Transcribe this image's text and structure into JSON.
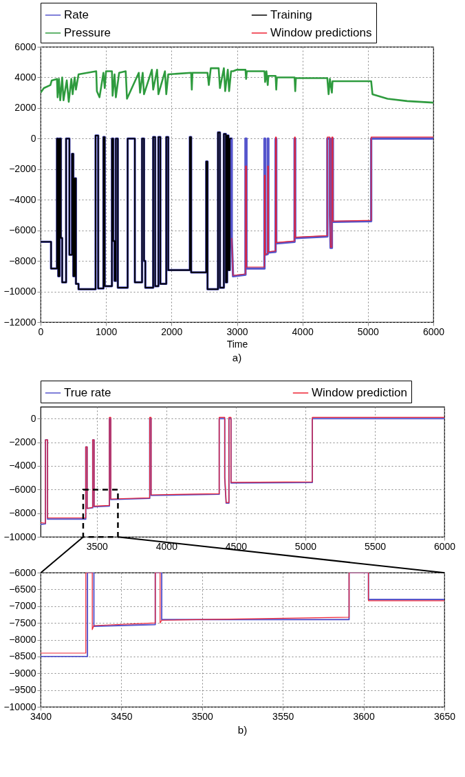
{
  "chart_data": [
    {
      "type": "line",
      "xlabel": "Time",
      "annotations": [
        "a)"
      ],
      "legend": "top",
      "grid": true,
      "xlim": [
        0,
        6000
      ],
      "ylim": [
        -12000,
        6000
      ],
      "xticks": [
        0,
        1000,
        2000,
        3000,
        4000,
        5000,
        6000
      ],
      "yticks": [
        -12000,
        -10000,
        -8000,
        -6000,
        -4000,
        -2000,
        0,
        2000,
        4000,
        6000
      ],
      "series": [
        {
          "name": "Rate",
          "color": "#5555cc",
          "x": [
            0,
            160,
            160,
            250,
            250,
            270,
            270,
            290,
            290,
            310,
            310,
            330,
            330,
            390,
            390,
            440,
            440,
            480,
            480,
            500,
            500,
            520,
            520,
            540,
            540,
            580,
            580,
            840,
            840,
            880,
            880,
            960,
            960,
            980,
            980,
            1090,
            1090,
            1110,
            1110,
            1130,
            1130,
            1150,
            1150,
            1180,
            1180,
            1330,
            1330,
            1440,
            1440,
            1550,
            1550,
            1580,
            1580,
            1600,
            1600,
            1720,
            1720,
            1750,
            1750,
            1800,
            1800,
            1830,
            1830,
            1920,
            1920,
            1950,
            1950,
            2280,
            2280,
            2300,
            2300,
            2530,
            2530,
            2550,
            2550,
            2710,
            2710,
            2740,
            2740,
            2800,
            2800,
            2830,
            2830,
            2850,
            2850,
            2870,
            2870,
            2890,
            2890,
            2920,
            2920,
            2940,
            3130,
            3130,
            3145,
            3145,
            3420,
            3420,
            3430,
            3430,
            3470,
            3470,
            3480,
            3480,
            3590,
            3590,
            3600,
            3600,
            3880,
            3880,
            3890,
            3890,
            4380,
            4380,
            4420,
            4420,
            4430,
            4450,
            4450,
            4465,
            4465,
            5050,
            5050,
            6000
          ],
          "values": [
            -6750,
            -6750,
            -8500,
            -8500,
            0,
            0,
            -9000,
            -9000,
            0,
            0,
            -6500,
            -6500,
            -9400,
            -9400,
            0,
            0,
            -7600,
            -7600,
            -1000,
            -1000,
            -9000,
            -9000,
            -2600,
            -2600,
            -9500,
            -9500,
            -9850,
            -9850,
            200,
            200,
            -9800,
            -9800,
            100,
            100,
            -9650,
            -9650,
            0,
            0,
            -6700,
            -6700,
            -9300,
            -9300,
            0,
            0,
            -9750,
            -9750,
            0,
            0,
            -9400,
            -9400,
            0,
            0,
            -8000,
            -8000,
            -9750,
            -9750,
            100,
            100,
            -9650,
            -9650,
            100,
            100,
            -9500,
            -9500,
            100,
            100,
            -8600,
            -8600,
            100,
            100,
            -8750,
            -8750,
            -1500,
            -1500,
            -9850,
            -9850,
            400,
            400,
            -9750,
            -9750,
            300,
            300,
            -9400,
            -9400,
            200,
            200,
            -8600,
            -8600,
            0,
            0,
            -6500,
            -9000,
            -8900,
            0,
            0,
            -8500,
            -8500,
            0,
            0,
            -7600,
            -7550,
            0,
            0,
            -7450,
            -7400,
            0,
            0,
            -6850,
            -6750,
            0,
            0,
            -6500,
            -6400,
            0,
            0,
            -5000,
            -7150,
            -7150,
            0,
            0,
            -5450,
            -5400,
            0,
            0
          ]
        },
        {
          "name": "Pressure",
          "color": "#2e9b3e",
          "x": [
            0,
            50,
            150,
            170,
            250,
            260,
            280,
            300,
            330,
            350,
            400,
            430,
            470,
            490,
            520,
            540,
            580,
            850,
            860,
            900,
            960,
            980,
            1000,
            1090,
            1100,
            1130,
            1150,
            1200,
            1300,
            1320,
            1500,
            1520,
            1560,
            1580,
            1700,
            1720,
            1780,
            1800,
            1900,
            1920,
            1950,
            2300,
            2310,
            2320,
            2550,
            2570,
            2600,
            2720,
            2740,
            2800,
            2820,
            2860,
            2880,
            2910,
            2940,
            3000,
            3130,
            3140,
            3150,
            3420,
            3430,
            3450,
            3470,
            3480,
            3590,
            3600,
            3610,
            3880,
            3890,
            3900,
            4380,
            4400,
            4420,
            4450,
            4460,
            5050,
            5070,
            5300,
            5600,
            6000
          ],
          "values": [
            3000,
            3300,
            3500,
            3800,
            3900,
            2700,
            3900,
            2500,
            4000,
            2500,
            3800,
            2400,
            3900,
            2900,
            4000,
            3200,
            4200,
            4400,
            3100,
            2700,
            4300,
            3300,
            4400,
            4400,
            2800,
            4200,
            2700,
            4300,
            4400,
            2600,
            4300,
            3000,
            4300,
            2900,
            4500,
            3200,
            4500,
            2900,
            4400,
            2900,
            4200,
            4300,
            3200,
            4300,
            4300,
            3500,
            4600,
            4600,
            3300,
            4600,
            3100,
            4500,
            3100,
            4400,
            4400,
            4500,
            4500,
            3900,
            4400,
            4400,
            3700,
            4400,
            3500,
            4100,
            4100,
            3200,
            4000,
            4000,
            3100,
            3950,
            3950,
            2900,
            3900,
            3000,
            3750,
            3750,
            2900,
            2600,
            2450,
            2350
          ]
        },
        {
          "name": "Training",
          "color": "#000000",
          "x": [
            0,
            160,
            160,
            250,
            250,
            270,
            270,
            290,
            290,
            310,
            310,
            330,
            330,
            390,
            390,
            440,
            440,
            480,
            480,
            500,
            500,
            520,
            520,
            540,
            540,
            580,
            580,
            840,
            840,
            880,
            880,
            960,
            960,
            980,
            980,
            1090,
            1090,
            1110,
            1110,
            1130,
            1130,
            1150,
            1150,
            1180,
            1180,
            1330,
            1330,
            1440,
            1440,
            1550,
            1550,
            1580,
            1580,
            1600,
            1600,
            1720,
            1720,
            1750,
            1750,
            1800,
            1800,
            1830,
            1830,
            1920,
            1920,
            1950,
            1950,
            2280,
            2280,
            2300,
            2300,
            2530,
            2530,
            2550,
            2550,
            2710,
            2710,
            2740,
            2740,
            2800,
            2800,
            2830,
            2830,
            2850,
            2850,
            2870,
            2870,
            2890,
            2890,
            2920
          ],
          "values": [
            -6750,
            -6750,
            -8500,
            -8500,
            0,
            0,
            -9000,
            -9000,
            0,
            0,
            -6500,
            -6500,
            -9400,
            -9400,
            0,
            0,
            -7600,
            -7600,
            -1000,
            -1000,
            -9000,
            -9000,
            -2600,
            -2600,
            -9500,
            -9500,
            -9850,
            -9850,
            200,
            200,
            -9800,
            -9800,
            100,
            100,
            -9650,
            -9650,
            0,
            0,
            -6700,
            -6700,
            -9300,
            -9300,
            0,
            0,
            -9750,
            -9750,
            0,
            0,
            -9400,
            -9400,
            0,
            0,
            -8000,
            -8000,
            -9750,
            -9750,
            100,
            100,
            -9650,
            -9650,
            100,
            100,
            -9500,
            -9500,
            100,
            100,
            -8600,
            -8600,
            100,
            100,
            -8750,
            -8750,
            -1500,
            -1500,
            -9850,
            -9850,
            400,
            400,
            -9750,
            -9750,
            300,
            300,
            -9400,
            -9400,
            200,
            200,
            -8600,
            -8600,
            0,
            0
          ]
        },
        {
          "name": "Window predictions",
          "color": "#ee2233",
          "x": [
            2920,
            2940,
            3130,
            3130,
            3145,
            3145,
            3420,
            3420,
            3430,
            3430,
            3470,
            3470,
            3480,
            3480,
            3590,
            3590,
            3600,
            3600,
            3880,
            3880,
            3890,
            3890,
            4380,
            4380,
            4420,
            4420,
            4430,
            4450,
            4450,
            4465,
            4465,
            5050,
            5050,
            6000
          ],
          "values": [
            -6500,
            -8950,
            -8850,
            -1800,
            -1800,
            -8400,
            -8400,
            -2400,
            -2400,
            -7600,
            -7500,
            -1800,
            -1800,
            -7400,
            -7350,
            100,
            100,
            -6800,
            -6700,
            100,
            100,
            -6450,
            -6350,
            100,
            100,
            -5000,
            -7100,
            -7100,
            100,
            100,
            -5400,
            -5350,
            100,
            100
          ]
        }
      ]
    },
    {
      "type": "line",
      "legend": "top",
      "grid": true,
      "xlim": [
        3095,
        6000
      ],
      "ylim": [
        -10000,
        1000
      ],
      "xticks": [
        3500,
        4000,
        4500,
        5000,
        5500,
        6000
      ],
      "yticks": [
        -10000,
        -8000,
        -6000,
        -4000,
        -2000,
        0
      ],
      "series": [
        {
          "name": "True rate",
          "color": "#5555cc",
          "x": [
            3095,
            3130,
            3130,
            3145,
            3145,
            3420,
            3420,
            3430,
            3430,
            3470,
            3470,
            3480,
            3480,
            3590,
            3590,
            3600,
            3600,
            3880,
            3880,
            3890,
            3890,
            4380,
            4380,
            4420,
            4420,
            4430,
            4450,
            4450,
            4465,
            4465,
            5050,
            5050,
            6000
          ],
          "values": [
            -8950,
            -8900,
            -1800,
            -1800,
            -8500,
            -8500,
            -2400,
            -2400,
            -7600,
            -7550,
            -1800,
            -1800,
            -7450,
            -7400,
            0,
            0,
            -6850,
            -6750,
            0,
            0,
            -6500,
            -6400,
            0,
            0,
            -5000,
            -7150,
            -7150,
            0,
            0,
            -5450,
            -5400,
            0,
            0
          ]
        },
        {
          "name": "Window prediction",
          "color": "#ee2233",
          "x": [
            3095,
            3130,
            3130,
            3145,
            3145,
            3420,
            3420,
            3430,
            3430,
            3470,
            3470,
            3480,
            3480,
            3590,
            3590,
            3600,
            3600,
            3880,
            3880,
            3890,
            3890,
            4380,
            4380,
            4420,
            4420,
            4430,
            4450,
            4450,
            4465,
            4465,
            5050,
            5050,
            6000
          ],
          "values": [
            -8800,
            -8850,
            -1800,
            -1800,
            -8400,
            -8400,
            -2400,
            -2400,
            -7600,
            -7500,
            -1800,
            -1800,
            -7400,
            -7350,
            100,
            100,
            -6800,
            -6700,
            100,
            100,
            -6450,
            -6350,
            100,
            100,
            -5000,
            -7100,
            -7100,
            100,
            100,
            -5400,
            -5350,
            100,
            100
          ]
        }
      ]
    },
    {
      "type": "line",
      "annotations": [
        "b)"
      ],
      "grid": true,
      "xlim": [
        3400,
        3650
      ],
      "ylim": [
        -10000,
        -6000
      ],
      "xticks": [
        3400,
        3450,
        3500,
        3550,
        3600,
        3650
      ],
      "yticks": [
        -10000,
        -9500,
        -9000,
        -8500,
        -8000,
        -7500,
        -7000,
        -6500,
        -6000
      ],
      "series": [
        {
          "color": "#5555cc",
          "x": [
            3400,
            3429,
            3429,
            3433,
            3433,
            3471,
            3471,
            3475,
            3475,
            3591,
            3591,
            3603,
            3603,
            3650
          ],
          "values": [
            -8500,
            -8500,
            -6000,
            -6000,
            -7600,
            -7550,
            -6000,
            -6000,
            -7400,
            -7400,
            -6000,
            -6000,
            -6800,
            -6800
          ]
        },
        {
          "color": "#ee2233",
          "x": [
            3400,
            3428,
            3428,
            3432,
            3432,
            3433,
            3471,
            3471,
            3474,
            3474,
            3475,
            3591,
            3591,
            3603,
            3603,
            3650
          ],
          "values": [
            -8400,
            -8400,
            -6000,
            -6000,
            -7700,
            -7580,
            -7500,
            -6000,
            -6000,
            -7500,
            -7420,
            -7330,
            -6000,
            -6000,
            -6840,
            -6840
          ]
        }
      ]
    }
  ]
}
